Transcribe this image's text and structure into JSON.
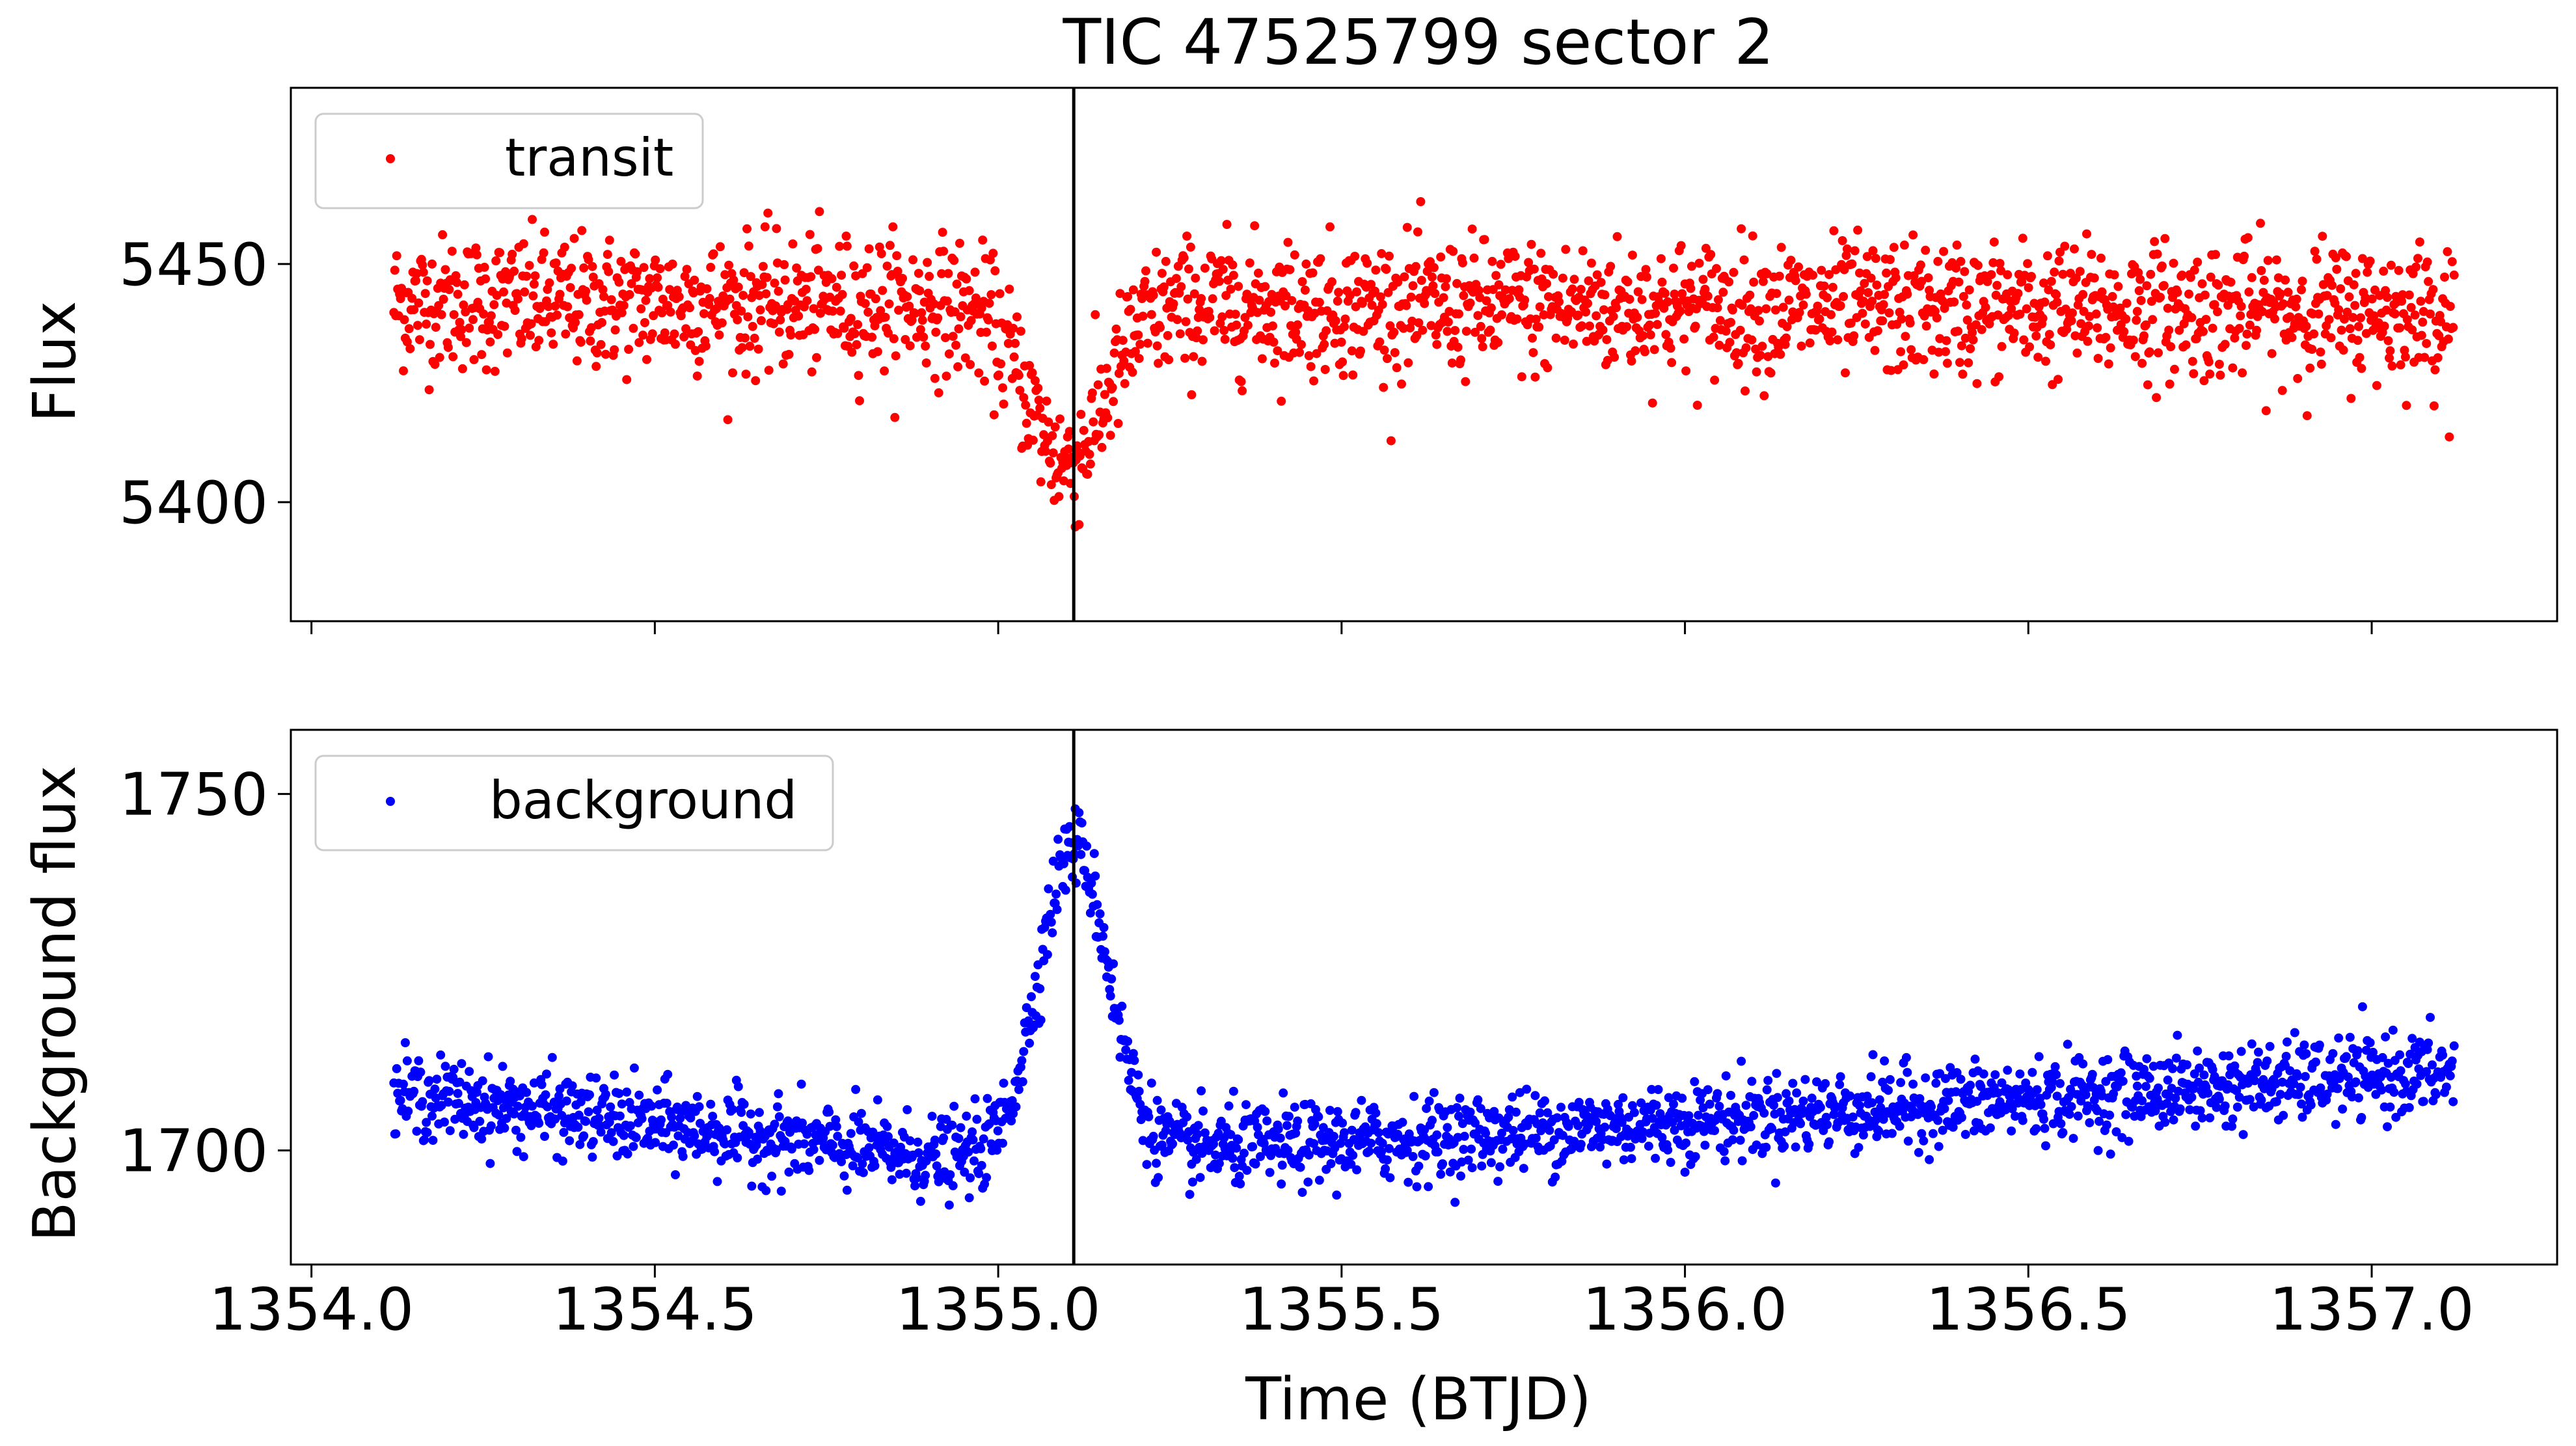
{
  "chart_data": {
    "title": "TIC 47525799 sector 2",
    "xlabel": "Time (BTJD)",
    "xlim": [
      1353.97,
      1357.27
    ],
    "xticks": [
      "1354.0",
      "1354.5",
      "1355.0",
      "1355.5",
      "1356.0",
      "1356.5",
      "1357.0"
    ],
    "xtick_values": [
      1354.0,
      1354.5,
      1355.0,
      1355.5,
      1356.0,
      1356.5,
      1357.0
    ],
    "transit_time": 1355.11,
    "panels": [
      {
        "id": "flux",
        "type": "scatter",
        "ylabel": "Flux",
        "ylim": [
          5375,
          5487
        ],
        "yticks": [
          "5400",
          "5450"
        ],
        "ytick_values": [
          5400,
          5450
        ],
        "legend": "transit",
        "legend_position": "top-left",
        "color": "#ff0000",
        "series_model": {
          "x_start": 1354.12,
          "x_end": 1357.12,
          "n_points": 2160,
          "baseline_start": 5442,
          "baseline_end": 5440,
          "noise_sd": 7,
          "dip_center": 1355.1,
          "dip_depth": 33,
          "dip_width": 0.055
        },
        "sample_points": [
          {
            "x": 1354.12,
            "y": 5442
          },
          {
            "x": 1354.5,
            "y": 5441
          },
          {
            "x": 1355.0,
            "y": 5436
          },
          {
            "x": 1355.1,
            "y": 5407
          },
          {
            "x": 1355.2,
            "y": 5432
          },
          {
            "x": 1355.5,
            "y": 5441
          },
          {
            "x": 1356.0,
            "y": 5439
          },
          {
            "x": 1356.5,
            "y": 5438
          },
          {
            "x": 1357.12,
            "y": 5440
          }
        ]
      },
      {
        "id": "background",
        "type": "scatter",
        "ylabel": "Background flux",
        "ylim": [
          1684,
          1759
        ],
        "yticks": [
          "1700",
          "1750"
        ],
        "ytick_values": [
          1700,
          1750
        ],
        "legend": "background",
        "legend_position": "top-left",
        "color": "#0000ff",
        "series_model": {
          "x_start": 1354.12,
          "x_end": 1357.12,
          "n_points": 2160,
          "noise_sd": 2.8,
          "peak_center": 1355.11,
          "peak_height": 43,
          "peak_width": 0.05
        },
        "sample_points": [
          {
            "x": 1354.12,
            "y": 1708
          },
          {
            "x": 1354.5,
            "y": 1702
          },
          {
            "x": 1354.9,
            "y": 1699
          },
          {
            "x": 1355.11,
            "y": 1744
          },
          {
            "x": 1355.3,
            "y": 1701
          },
          {
            "x": 1355.8,
            "y": 1700
          },
          {
            "x": 1356.3,
            "y": 1703
          },
          {
            "x": 1356.8,
            "y": 1706
          },
          {
            "x": 1357.12,
            "y": 1711
          }
        ]
      }
    ]
  }
}
